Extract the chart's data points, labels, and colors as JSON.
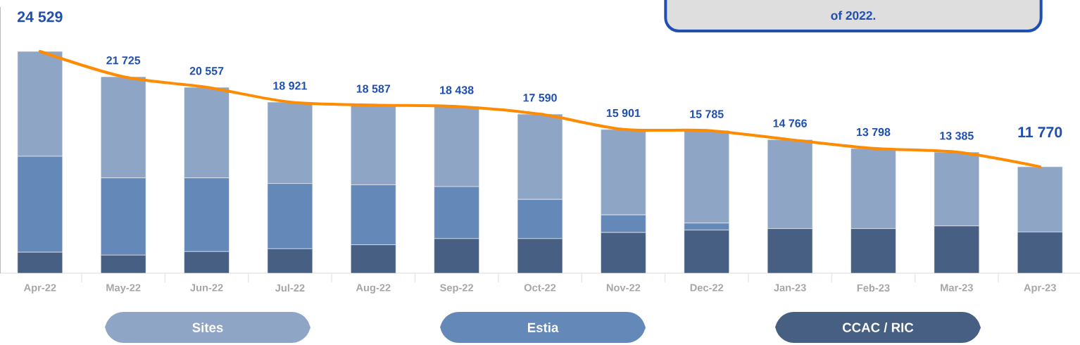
{
  "chart_data": {
    "type": "bar",
    "stacked": true,
    "legend": "bottom",
    "categories": [
      "Apr-22",
      "May-22",
      "Jun-22",
      "Jul-22",
      "Aug-22",
      "Sep-22",
      "Oct-22",
      "Nov-22",
      "Dec-22",
      "Jan-23",
      "Feb-23",
      "Mar-23",
      "Apr-23"
    ],
    "series": [
      {
        "name": "CCAC / RIC",
        "color": "#465f82",
        "values": [
          2320,
          2000,
          2390,
          2700,
          3140,
          3820,
          3820,
          4500,
          4760,
          4930,
          4930,
          5220,
          4550
        ]
      },
      {
        "name": "Estia",
        "color": "#6488b8",
        "values": [
          10600,
          8540,
          8150,
          7220,
          6630,
          5750,
          4340,
          1950,
          780,
          0,
          0,
          0,
          0
        ]
      },
      {
        "name": "Sites",
        "color": "#8fa5c5",
        "values": [
          11609,
          11185,
          10017,
          9001,
          8817,
          8868,
          9430,
          9451,
          10245,
          9836,
          8868,
          8165,
          7220
        ]
      },
      {
        "type": "line",
        "color": "#ff8c00",
        "values": [
          24529,
          21725,
          20557,
          18921,
          18587,
          18438,
          17590,
          15901,
          15785,
          14766,
          13798,
          13385,
          11770
        ],
        "value_labels": [
          "24 529",
          "21 725",
          "20 557",
          "18 921",
          "18 587",
          "18 438",
          "17 590",
          "15 901",
          "15 785",
          "14 766",
          "13 798",
          "13 385",
          "11 770"
        ]
      }
    ],
    "annotations": [
      "of 2022."
    ]
  }
}
